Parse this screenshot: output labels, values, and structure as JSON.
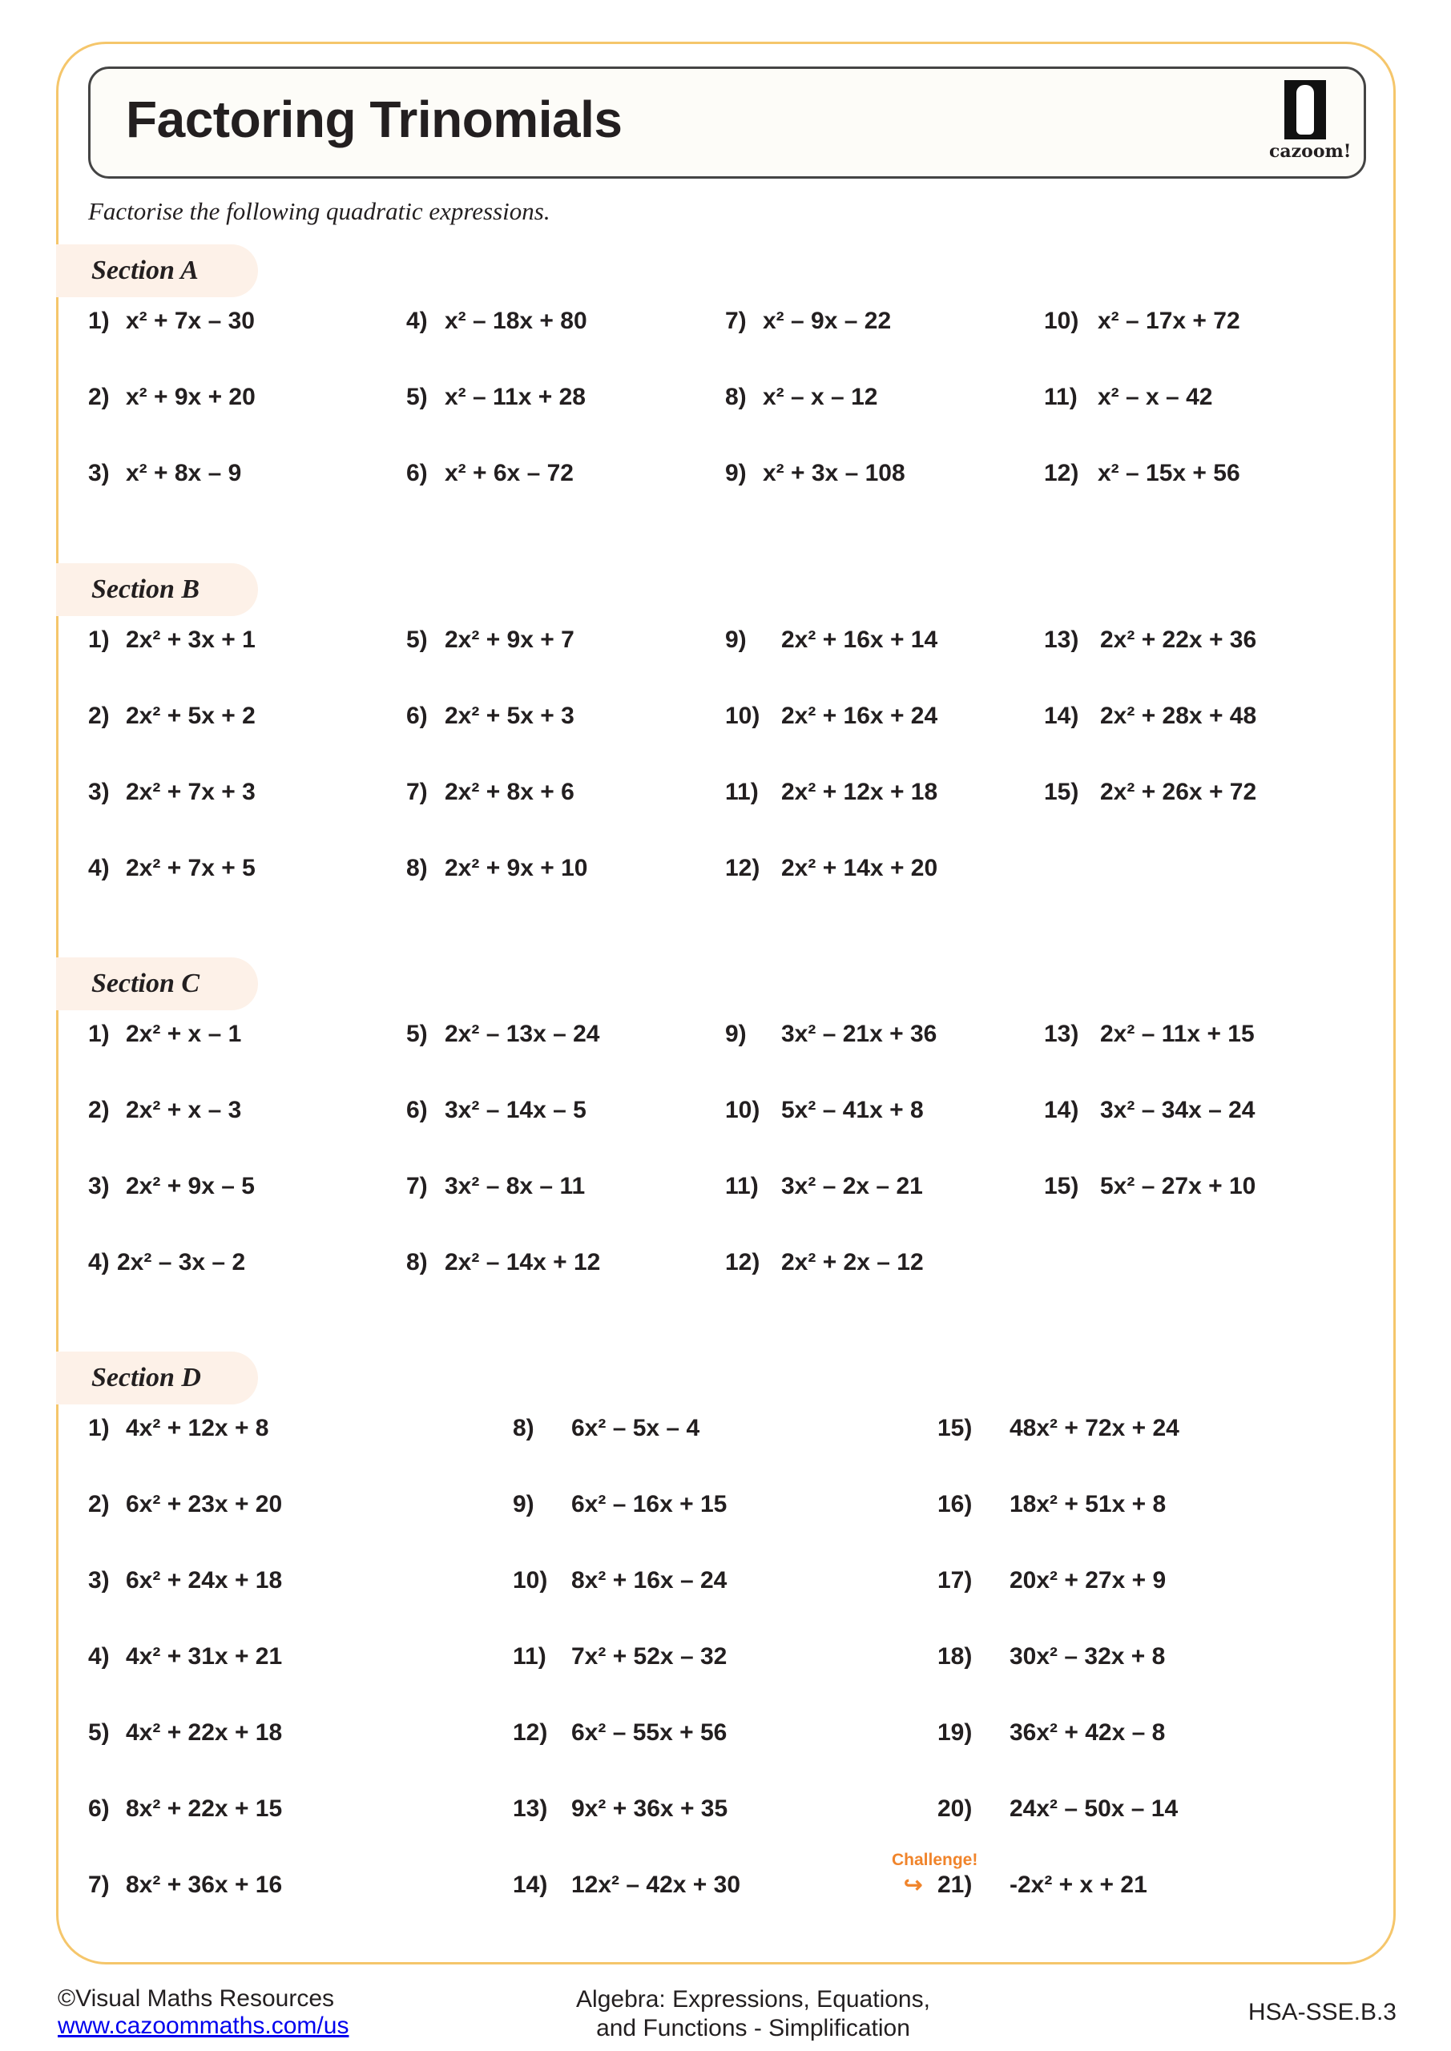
{
  "header": {
    "title": "Factoring Trinomials",
    "logo_text": "cazoom!"
  },
  "instruction": "Factorise the following quadratic expressions.",
  "sections": [
    {
      "label": "Section A",
      "columns": [
        [
          [
            "1)",
            "x² + 7x – 30"
          ],
          [
            "2)",
            "x² + 9x + 20"
          ],
          [
            "3)",
            "x² + 8x – 9"
          ]
        ],
        [
          [
            "4)",
            "x² – 18x + 80"
          ],
          [
            "5)",
            "x² – 11x + 28"
          ],
          [
            "6)",
            "x² + 6x – 72"
          ]
        ],
        [
          [
            "7)",
            "x² – 9x – 22"
          ],
          [
            "8)",
            "x² – x – 12"
          ],
          [
            "9)",
            "x² + 3x – 108"
          ]
        ],
        [
          [
            "10)",
            "x² – 17x + 72"
          ],
          [
            "11)",
            "x² – x – 42"
          ],
          [
            "12)",
            "x² – 15x + 56"
          ]
        ]
      ]
    },
    {
      "label": "Section B",
      "columns": [
        [
          [
            "1)",
            "2x² + 3x + 1"
          ],
          [
            "2)",
            "2x² + 5x + 2"
          ],
          [
            "3)",
            "2x² + 7x + 3"
          ],
          [
            "4)",
            "2x² + 7x + 5"
          ]
        ],
        [
          [
            "5)",
            "2x² + 9x + 7"
          ],
          [
            "6)",
            "2x² + 5x + 3"
          ],
          [
            "7)",
            "2x² + 8x + 6"
          ],
          [
            "8)",
            "2x² + 9x + 10"
          ]
        ],
        [
          [
            "9)",
            "2x² + 16x + 14"
          ],
          [
            "10)",
            "2x² + 16x + 24"
          ],
          [
            "11)",
            "2x² + 12x + 18"
          ],
          [
            "12)",
            "2x² + 14x + 20"
          ]
        ],
        [
          [
            "13)",
            "2x² + 22x + 36"
          ],
          [
            "14)",
            "2x² + 28x + 48"
          ],
          [
            "15)",
            "2x² + 26x + 72"
          ]
        ]
      ]
    },
    {
      "label": "Section C",
      "columns": [
        [
          [
            "1)",
            "2x² + x – 1"
          ],
          [
            "2)",
            "2x² + x – 3"
          ],
          [
            "3)",
            "2x² + 9x – 5"
          ],
          [
            "4)",
            "2x² – 3x – 2"
          ]
        ],
        [
          [
            "5)",
            "2x² – 13x – 24"
          ],
          [
            "6)",
            "3x² – 14x – 5"
          ],
          [
            "7)",
            "3x² – 8x – 11"
          ],
          [
            "8)",
            "2x² – 14x + 12"
          ]
        ],
        [
          [
            "9)",
            "3x² – 21x + 36"
          ],
          [
            "10)",
            "5x² – 41x + 8"
          ],
          [
            "11)",
            "3x² – 2x – 21"
          ],
          [
            "12)",
            "2x² + 2x – 12"
          ]
        ],
        [
          [
            "13)",
            "2x² – 11x + 15"
          ],
          [
            "14)",
            "3x² – 34x – 24"
          ],
          [
            "15)",
            "5x² – 27x + 10"
          ]
        ]
      ]
    },
    {
      "label": "Section D",
      "columns": [
        [
          [
            "1)",
            "4x² + 12x + 8"
          ],
          [
            "2)",
            "6x² + 23x + 20"
          ],
          [
            "3)",
            "6x² + 24x + 18"
          ],
          [
            "4)",
            "4x² + 31x + 21"
          ],
          [
            "5)",
            "4x² + 22x + 18"
          ],
          [
            "6)",
            "8x² + 22x + 15"
          ],
          [
            "7)",
            "8x² + 36x + 16"
          ]
        ],
        [
          [
            "8)",
            "6x² – 5x – 4"
          ],
          [
            "9)",
            "6x²  – 16x + 15"
          ],
          [
            "10)",
            "8x²  + 16x – 24"
          ],
          [
            "11)",
            "7x² + 52x – 32"
          ],
          [
            "12)",
            "6x² – 55x + 56"
          ],
          [
            "13)",
            "9x² + 36x + 35"
          ],
          [
            "14)",
            "12x² – 42x + 30"
          ]
        ],
        [
          [
            "15)",
            "48x² + 72x + 24"
          ],
          [
            "16)",
            "18x² + 51x + 8"
          ],
          [
            "17)",
            "20x²  + 27x + 9"
          ],
          [
            "18)",
            "30x² – 32x + 8"
          ],
          [
            "19)",
            "36x² + 42x – 8"
          ],
          [
            "20)",
            "24x² – 50x – 14"
          ],
          [
            "21)",
            "-2x² + x + 21"
          ]
        ]
      ]
    }
  ],
  "challenge_label": "Challenge!",
  "footer": {
    "copyright": "©Visual Maths Resources",
    "link": "www.cazoommaths.com/us",
    "topic_line1": "Algebra: Expressions, Equations,",
    "topic_line2": "and Functions - Simplification",
    "standard": "HSA-SSE.B.3"
  },
  "colors": {
    "border": "#f5c66b",
    "section_bg": "#fdf1e8",
    "challenge": "#f0842b",
    "link": "#0000ee"
  }
}
